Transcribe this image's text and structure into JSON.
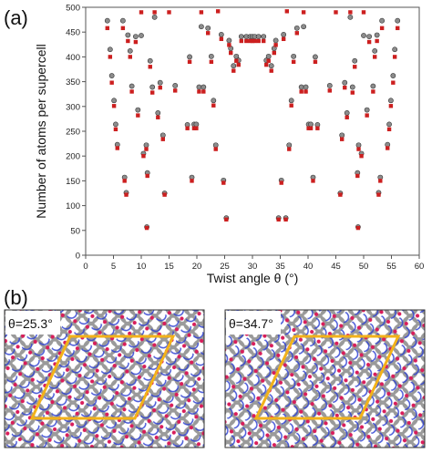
{
  "panels": {
    "a_label": "(a)",
    "b_label": "(b)"
  },
  "chart_data": {
    "type": "scatter",
    "title": "",
    "xlabel": "Twist angle θ (°)",
    "ylabel": "Number of atoms per supercell",
    "xlim": [
      0,
      60
    ],
    "ylim": [
      0,
      500
    ],
    "x_ticks": [
      "0",
      "5",
      "10",
      "15",
      "20",
      "25",
      "30",
      "35",
      "40",
      "45",
      "50",
      "55",
      "60"
    ],
    "y_ticks": [
      "0",
      "50",
      "100",
      "150",
      "200",
      "250",
      "300",
      "350",
      "400",
      "450",
      "500"
    ],
    "grid": false,
    "legend": "none",
    "series": [
      {
        "marker": "gray-circle",
        "color": "#8c8c8c",
        "points": [
          [
            3.9,
            473
          ],
          [
            4.4,
            415
          ],
          [
            4.7,
            362
          ],
          [
            5.1,
            312
          ],
          [
            5.4,
            264
          ],
          [
            5.7,
            223
          ],
          [
            6.7,
            473
          ],
          [
            7.0,
            157
          ],
          [
            7.3,
            126
          ],
          [
            7.6,
            444
          ],
          [
            8.0,
            412
          ],
          [
            8.3,
            341
          ],
          [
            9.0,
            441
          ],
          [
            9.4,
            293
          ],
          [
            10.0,
            443
          ],
          [
            10.4,
            205
          ],
          [
            10.9,
            222
          ],
          [
            11.1,
            166
          ],
          [
            11.6,
            392
          ],
          [
            12.0,
            339
          ],
          [
            12.4,
            480
          ],
          [
            13.0,
            287
          ],
          [
            13.4,
            348
          ],
          [
            13.9,
            242
          ],
          [
            14.2,
            125
          ],
          [
            16.1,
            342
          ],
          [
            18.3,
            263
          ],
          [
            18.7,
            400
          ],
          [
            19.1,
            157
          ],
          [
            19.5,
            264
          ],
          [
            19.9,
            264
          ],
          [
            20.4,
            339
          ],
          [
            20.8,
            461
          ],
          [
            21.2,
            339
          ],
          [
            22.0,
            458
          ],
          [
            22.6,
            401
          ],
          [
            23.0,
            312
          ],
          [
            23.4,
            222
          ],
          [
            24.4,
            445
          ],
          [
            24.8,
            151
          ],
          [
            25.3,
            75
          ],
          [
            25.8,
            433
          ],
          [
            26.1,
            417
          ],
          [
            26.6,
            382
          ],
          [
            27.1,
            401
          ],
          [
            27.5,
            393
          ],
          [
            28.0,
            441
          ],
          [
            28.9,
            441
          ],
          [
            29.6,
            441
          ],
          [
            30.0,
            441
          ],
          [
            30.4,
            441
          ],
          [
            31.1,
            441
          ],
          [
            32.0,
            441
          ],
          [
            32.5,
            393
          ],
          [
            32.9,
            401
          ],
          [
            33.4,
            382
          ],
          [
            33.9,
            417
          ],
          [
            34.2,
            433
          ],
          [
            34.7,
            75
          ],
          [
            35.2,
            151
          ],
          [
            35.6,
            445
          ],
          [
            36.6,
            222
          ],
          [
            37.0,
            312
          ],
          [
            37.4,
            401
          ],
          [
            38.0,
            458
          ],
          [
            38.8,
            339
          ],
          [
            39.2,
            461
          ],
          [
            39.6,
            339
          ],
          [
            40.1,
            264
          ],
          [
            40.5,
            264
          ],
          [
            40.9,
            157
          ],
          [
            41.3,
            400
          ],
          [
            41.7,
            263
          ],
          [
            43.9,
            342
          ],
          [
            45.8,
            125
          ],
          [
            46.1,
            242
          ],
          [
            46.6,
            348
          ],
          [
            47.0,
            287
          ],
          [
            47.6,
            480
          ],
          [
            48.0,
            339
          ],
          [
            48.4,
            392
          ],
          [
            48.9,
            166
          ],
          [
            49.1,
            222
          ],
          [
            49.6,
            205
          ],
          [
            50.0,
            443
          ],
          [
            50.6,
            293
          ],
          [
            51.0,
            441
          ],
          [
            51.7,
            341
          ],
          [
            52.0,
            412
          ],
          [
            52.4,
            444
          ],
          [
            52.7,
            126
          ],
          [
            53.0,
            157
          ],
          [
            53.3,
            473
          ],
          [
            54.3,
            223
          ],
          [
            54.6,
            264
          ],
          [
            54.9,
            312
          ],
          [
            55.3,
            362
          ],
          [
            55.6,
            415
          ],
          [
            56.1,
            473
          ],
          [
            11.0,
            57
          ],
          [
            49.0,
            57
          ],
          [
            36.0,
            75
          ]
        ]
      },
      {
        "marker": "red-square",
        "color": "#cc1f1f",
        "points": [
          [
            3.9,
            458
          ],
          [
            4.4,
            400
          ],
          [
            4.7,
            348
          ],
          [
            5.1,
            301
          ],
          [
            5.4,
            254
          ],
          [
            5.7,
            216
          ],
          [
            6.7,
            458
          ],
          [
            7.0,
            150
          ],
          [
            7.3,
            122
          ],
          [
            7.6,
            432
          ],
          [
            8.0,
            400
          ],
          [
            8.3,
            330
          ],
          [
            9.0,
            430
          ],
          [
            9.4,
            282
          ],
          [
            10.0,
            490
          ],
          [
            10.4,
            200
          ],
          [
            10.9,
            214
          ],
          [
            11.1,
            160
          ],
          [
            11.6,
            380
          ],
          [
            12.0,
            328
          ],
          [
            12.4,
            490
          ],
          [
            13.0,
            278
          ],
          [
            13.4,
            338
          ],
          [
            13.9,
            234
          ],
          [
            14.2,
            122
          ],
          [
            15.0,
            490
          ],
          [
            16.1,
            332
          ],
          [
            18.3,
            256
          ],
          [
            18.7,
            390
          ],
          [
            19.1,
            150
          ],
          [
            19.5,
            256
          ],
          [
            19.9,
            256
          ],
          [
            20.4,
            330
          ],
          [
            20.8,
            490
          ],
          [
            21.2,
            330
          ],
          [
            22.0,
            448
          ],
          [
            22.6,
            390
          ],
          [
            23.0,
            302
          ],
          [
            23.4,
            214
          ],
          [
            23.8,
            492
          ],
          [
            24.4,
            436
          ],
          [
            24.8,
            146
          ],
          [
            25.3,
            72
          ],
          [
            25.8,
            424
          ],
          [
            26.1,
            408
          ],
          [
            26.6,
            372
          ],
          [
            27.1,
            392
          ],
          [
            27.5,
            384
          ],
          [
            28.0,
            432
          ],
          [
            28.9,
            432
          ],
          [
            29.6,
            432
          ],
          [
            30.0,
            432
          ],
          [
            30.4,
            432
          ],
          [
            31.1,
            432
          ],
          [
            32.0,
            432
          ],
          [
            32.5,
            384
          ],
          [
            32.9,
            392
          ],
          [
            33.4,
            372
          ],
          [
            33.9,
            408
          ],
          [
            34.2,
            424
          ],
          [
            34.7,
            72
          ],
          [
            35.2,
            146
          ],
          [
            35.6,
            436
          ],
          [
            36.2,
            492
          ],
          [
            36.6,
            214
          ],
          [
            37.0,
            302
          ],
          [
            37.4,
            390
          ],
          [
            38.0,
            448
          ],
          [
            38.8,
            330
          ],
          [
            39.2,
            490
          ],
          [
            39.6,
            330
          ],
          [
            40.1,
            256
          ],
          [
            40.5,
            256
          ],
          [
            40.9,
            150
          ],
          [
            41.3,
            390
          ],
          [
            41.7,
            256
          ],
          [
            43.9,
            332
          ],
          [
            45.0,
            490
          ],
          [
            45.8,
            122
          ],
          [
            46.1,
            234
          ],
          [
            46.6,
            338
          ],
          [
            47.0,
            278
          ],
          [
            47.6,
            490
          ],
          [
            48.0,
            328
          ],
          [
            48.4,
            380
          ],
          [
            48.9,
            160
          ],
          [
            49.1,
            214
          ],
          [
            49.6,
            200
          ],
          [
            50.0,
            490
          ],
          [
            50.6,
            282
          ],
          [
            51.0,
            430
          ],
          [
            51.7,
            330
          ],
          [
            52.0,
            400
          ],
          [
            52.4,
            432
          ],
          [
            52.7,
            122
          ],
          [
            53.0,
            150
          ],
          [
            53.3,
            458
          ],
          [
            54.3,
            216
          ],
          [
            54.6,
            254
          ],
          [
            54.9,
            301
          ],
          [
            55.3,
            348
          ],
          [
            55.6,
            400
          ],
          [
            56.1,
            458
          ],
          [
            11.0,
            55
          ],
          [
            49.0,
            55
          ],
          [
            36.0,
            72
          ]
        ]
      }
    ]
  },
  "structures": [
    {
      "label": "θ=25.3°"
    },
    {
      "label": "θ=34.7°"
    }
  ],
  "colors": {
    "point_gray": "#8c8c8c",
    "point_red": "#cc1f1f",
    "supercell": "#f2b21a",
    "atom_blue": "#2d3fd1",
    "atom_red": "#d81e5b",
    "ring_gray": "#9a9a9a"
  }
}
